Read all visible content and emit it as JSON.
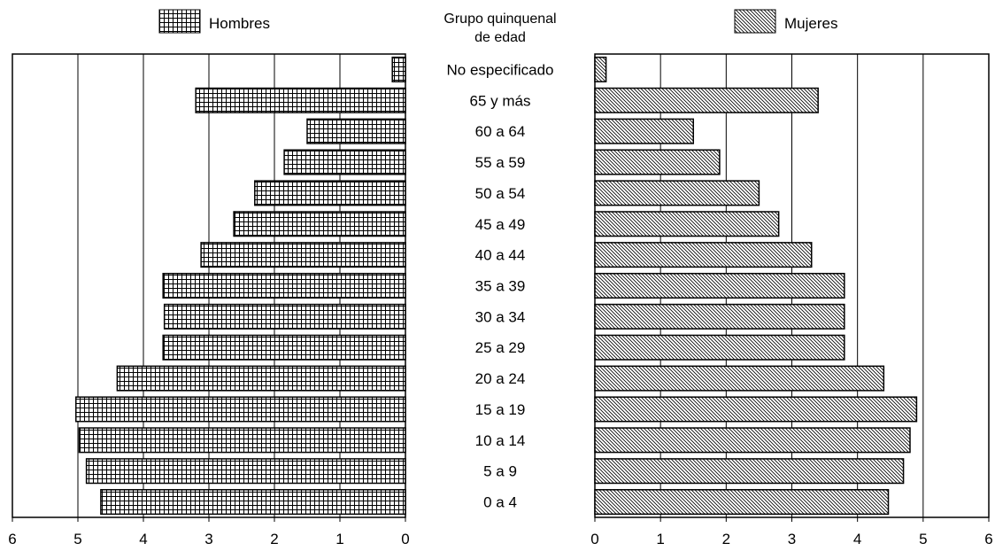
{
  "chart_data": {
    "type": "bar",
    "orientation": "horizontal",
    "layout": "population-pyramid",
    "center_title": [
      "Grupo quinquenal",
      "de edad"
    ],
    "categories": [
      "No especificado",
      "65 y más",
      "60 a 64",
      "55 a 59",
      "50 a 54",
      "45 a 49",
      "40 a 44",
      "35 a 39",
      "30 a 34",
      "25 a 29",
      "20 a 24",
      "15 a 19",
      "10 a 14",
      "5 a 9",
      "0 a 4"
    ],
    "series": [
      {
        "name": "Hombres",
        "side": "left",
        "pattern": "grid",
        "values": [
          0.2,
          3.2,
          1.5,
          1.85,
          2.3,
          2.62,
          3.12,
          3.7,
          3.68,
          3.7,
          4.4,
          5.03,
          4.98,
          4.87,
          4.65
        ]
      },
      {
        "name": "Mujeres",
        "side": "right",
        "pattern": "diagonal",
        "values": [
          0.17,
          3.4,
          1.5,
          1.9,
          2.5,
          2.8,
          3.3,
          3.8,
          3.8,
          3.8,
          4.4,
          4.9,
          4.8,
          4.7,
          4.47
        ]
      }
    ],
    "xlim": [
      0,
      6
    ],
    "xticks": [
      "0",
      "1",
      "2",
      "3",
      "4",
      "5",
      "6"
    ],
    "grid": true,
    "legend_position": "top"
  }
}
